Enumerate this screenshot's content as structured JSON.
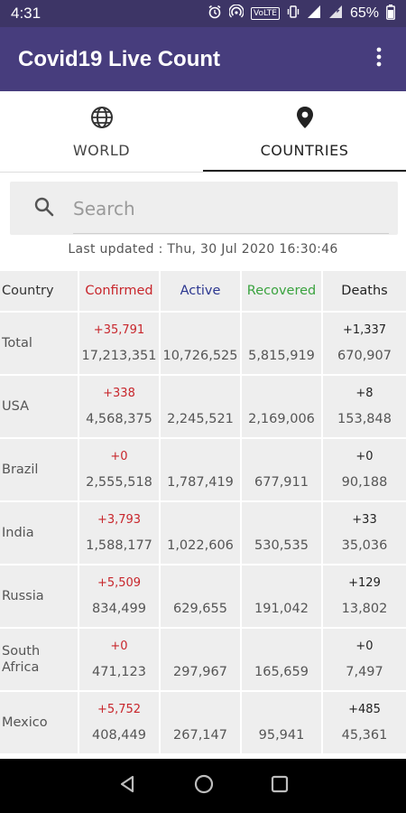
{
  "status": {
    "time": "4:31",
    "lte": "VoLTE",
    "battery": "65%"
  },
  "app": {
    "title": "Covid19 Live Count"
  },
  "tabs": [
    {
      "label": "WORLD",
      "icon": "globe-icon",
      "active": false
    },
    {
      "label": "COUNTRIES",
      "icon": "location-pin-icon",
      "active": true
    }
  ],
  "search": {
    "placeholder": "Search"
  },
  "last_updated": "Last updated : Thu, 30 Jul 2020 16:30:46",
  "table": {
    "headers": {
      "country": "Country",
      "confirmed": "Confirmed",
      "active": "Active",
      "recovered": "Recovered",
      "deaths": "Deaths"
    },
    "header_colors": {
      "confirmed": "#c8262c",
      "active": "#2c3790",
      "recovered": "#3aa33f",
      "deaths": "#222222"
    },
    "rows": [
      {
        "country": "Total",
        "confirmed_delta": "+35,791",
        "confirmed": "17,213,351",
        "active": "10,726,525",
        "recovered": "5,815,919",
        "deaths_delta": "+1,337",
        "deaths": "670,907"
      },
      {
        "country": "USA",
        "confirmed_delta": "+338",
        "confirmed": "4,568,375",
        "active": "2,245,521",
        "recovered": "2,169,006",
        "deaths_delta": "+8",
        "deaths": "153,848"
      },
      {
        "country": "Brazil",
        "confirmed_delta": "+0",
        "confirmed": "2,555,518",
        "active": "1,787,419",
        "recovered": "677,911",
        "deaths_delta": "+0",
        "deaths": "90,188"
      },
      {
        "country": "India",
        "confirmed_delta": "+3,793",
        "confirmed": "1,588,177",
        "active": "1,022,606",
        "recovered": "530,535",
        "deaths_delta": "+33",
        "deaths": "35,036"
      },
      {
        "country": "Russia",
        "confirmed_delta": "+5,509",
        "confirmed": "834,499",
        "active": "629,655",
        "recovered": "191,042",
        "deaths_delta": "+129",
        "deaths": "13,802"
      },
      {
        "country": "South Africa",
        "confirmed_delta": "+0",
        "confirmed": "471,123",
        "active": "297,967",
        "recovered": "165,659",
        "deaths_delta": "+0",
        "deaths": "7,497"
      },
      {
        "country": "Mexico",
        "confirmed_delta": "+5,752",
        "confirmed": "408,449",
        "active": "267,147",
        "recovered": "95,941",
        "deaths_delta": "+485",
        "deaths": "45,361"
      }
    ]
  }
}
